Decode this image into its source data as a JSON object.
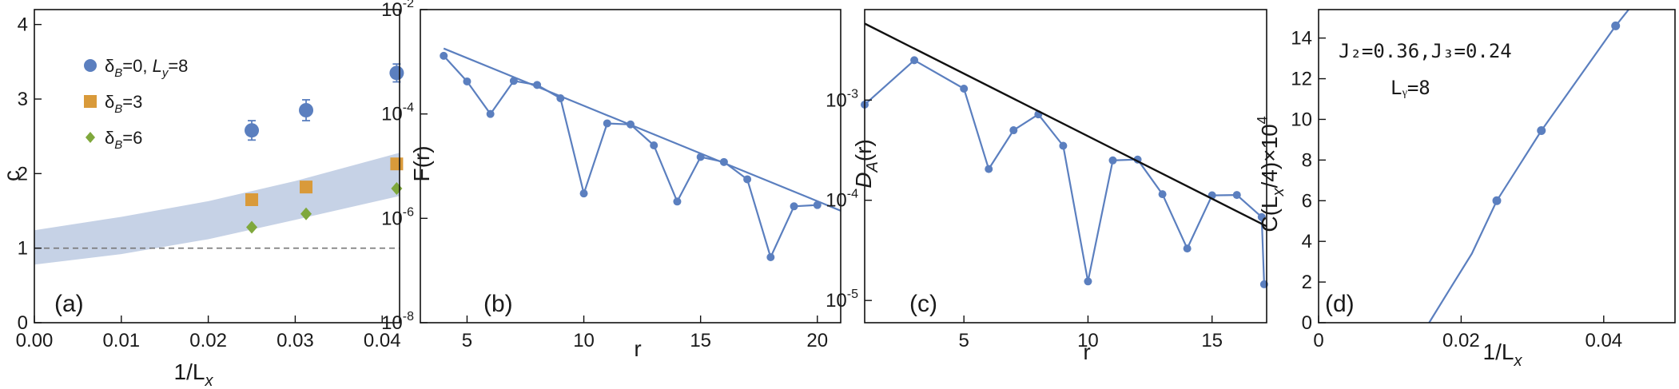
{
  "colors": {
    "blue": "#5b7fbf",
    "orange": "#d99a3a",
    "green": "#7fa83c",
    "band": "#c6d2e6",
    "black": "#111111",
    "dash": "#777777"
  },
  "chart_data": [
    {
      "id": "a",
      "type": "scatter",
      "panel_label": "(a)",
      "xlabel": "1/L",
      "xlabel_sub": "x",
      "ylabel": "c",
      "xlim": [
        0,
        0.042
      ],
      "ylim": [
        0,
        4.2
      ],
      "x_ticks": [
        0,
        0.01,
        0.02,
        0.03,
        0.04
      ],
      "x_tick_labels": [
        "0.00",
        "0.01",
        "0.02",
        "0.03",
        "0.04"
      ],
      "y_ticks": [
        0,
        1,
        2,
        3,
        4
      ],
      "y_tick_labels": [
        "0",
        "1",
        "2",
        "3",
        "4"
      ],
      "legend_position": "top-left",
      "reference_line": 1,
      "band": {
        "x": [
          0,
          0.01,
          0.02,
          0.03,
          0.042
        ],
        "lower": [
          0.78,
          0.92,
          1.12,
          1.38,
          1.7
        ],
        "upper": [
          1.24,
          1.42,
          1.63,
          1.9,
          2.28
        ]
      },
      "series": [
        {
          "name": "δ_B=0, L_y=8",
          "label_parts": [
            "δ",
            "B",
            "=0, ",
            "L",
            "y",
            "=8"
          ],
          "marker": "circle",
          "color": "blue",
          "x": [
            0.025,
            0.03125,
            0.04167
          ],
          "y": [
            2.58,
            2.85,
            3.35
          ],
          "yerr": [
            0.13,
            0.14,
            0.12
          ]
        },
        {
          "name": "δ_B=3",
          "label_parts": [
            "δ",
            "B",
            "=3"
          ],
          "marker": "square",
          "color": "orange",
          "x": [
            0.025,
            0.03125,
            0.04167
          ],
          "y": [
            1.65,
            1.82,
            2.13
          ]
        },
        {
          "name": "δ_B=6",
          "label_parts": [
            "δ",
            "B",
            "=6"
          ],
          "marker": "diamond",
          "color": "green",
          "x": [
            0.025,
            0.03125,
            0.04167
          ],
          "y": [
            1.28,
            1.46,
            1.8
          ]
        }
      ]
    },
    {
      "id": "b",
      "type": "line",
      "panel_label": "(b)",
      "xlabel": "r",
      "ylabel": "F(r)",
      "xlim": [
        3,
        21
      ],
      "y_scale": "log",
      "ylim": [
        1e-08,
        0.01
      ],
      "x_ticks": [
        5,
        10,
        15,
        20
      ],
      "x_tick_labels": [
        "5",
        "10",
        "15",
        "20"
      ],
      "y_ticks": [
        1e-08,
        1e-06,
        0.0001,
        0.01
      ],
      "y_tick_labels": [
        [
          "10",
          "-8"
        ],
        [
          "10",
          "-6"
        ],
        [
          "10",
          "-4"
        ],
        [
          "10",
          "-2"
        ]
      ],
      "series": [
        {
          "name": "",
          "color": "blue",
          "markers": true,
          "x": [
            4,
            5,
            6,
            7,
            8,
            9,
            10,
            11,
            12,
            13,
            14,
            15,
            16,
            17,
            18,
            19,
            20
          ],
          "y": [
            0.0013,
            0.00042,
            0.0001,
            0.00043,
            0.00036,
            0.0002,
            3e-06,
            6.6e-05,
            6.3e-05,
            2.5e-05,
            2.1e-06,
            1.5e-05,
            1.2e-05,
            5.6e-06,
            1.8e-07,
            1.7e-06,
            1.8e-06
          ]
        },
        {
          "name": "",
          "color": "blue",
          "markers": false,
          "x": [
            4,
            21
          ],
          "y": [
            0.0018,
            1.4e-06
          ]
        }
      ]
    },
    {
      "id": "c",
      "type": "line",
      "panel_label": "(c)",
      "xlabel": "r",
      "ylabel": "D",
      "ylabel_sub": "A",
      "ylabel_suffix": "(r)",
      "xlim": [
        1,
        17.2
      ],
      "y_scale": "log",
      "ylim": [
        6e-06,
        0.008
      ],
      "x_ticks": [
        5,
        10,
        15
      ],
      "x_tick_labels": [
        "5",
        "10",
        "15"
      ],
      "y_ticks": [
        1e-05,
        0.0001,
        0.001
      ],
      "y_tick_labels": [
        [
          "10",
          "-5"
        ],
        [
          "10",
          "-4"
        ],
        [
          "10",
          "-3"
        ]
      ],
      "series": [
        {
          "name": "",
          "color": "blue",
          "markers": true,
          "x": [
            1,
            3,
            5,
            6,
            7,
            8,
            9,
            10,
            11,
            12,
            13,
            14,
            15,
            16,
            17
          ],
          "y": [
            0.0009,
            0.0025,
            0.0013,
            0.000205,
            0.0005,
            0.00072,
            0.00035,
            1.55e-05,
            0.00025,
            0.000255,
            0.000115,
            3.3e-05,
            0.000112,
            0.000113,
            6.8e-05
          ],
          "extra_x": [
            17.1
          ],
          "extra_y": [
            1.45e-05
          ]
        },
        {
          "name": "",
          "color": "black",
          "markers": false,
          "x": [
            1,
            17.2
          ],
          "y": [
            0.0058,
            5.5e-05
          ]
        }
      ]
    },
    {
      "id": "d",
      "type": "line",
      "panel_label": "(d)",
      "xlabel": "1/L",
      "xlabel_sub": "x",
      "ylabel": "C(L",
      "ylabel_sub": "x",
      "ylabel_suffix": "/4)×10",
      "ylabel_sup": "4",
      "xlim": [
        0,
        0.05
      ],
      "ylim": [
        0,
        15.4
      ],
      "x_ticks": [
        0,
        0.02,
        0.04
      ],
      "x_tick_labels": [
        "0",
        "0.02",
        "0.04"
      ],
      "y_ticks": [
        0,
        2,
        4,
        6,
        8,
        10,
        12,
        14
      ],
      "y_tick_labels": [
        "0",
        "2",
        "4",
        "6",
        "8",
        "10",
        "12",
        "14"
      ],
      "annotation_line1": "J₂=0.36,J₃=0.24",
      "annotation_line2": "Lᵧ=8",
      "series": [
        {
          "name": "",
          "color": "blue",
          "markers": true,
          "x": [
            0.025,
            0.03125,
            0.04167
          ],
          "y": [
            6.0,
            9.45,
            14.6
          ]
        },
        {
          "name": "",
          "color": "blue",
          "markers": false,
          "x": [
            0.0155,
            0.0185,
            0.0215,
            0.025,
            0.03125,
            0.04167,
            0.0435
          ],
          "y": [
            0,
            1.7,
            3.4,
            6.0,
            9.45,
            14.6,
            15.4
          ]
        }
      ]
    }
  ]
}
